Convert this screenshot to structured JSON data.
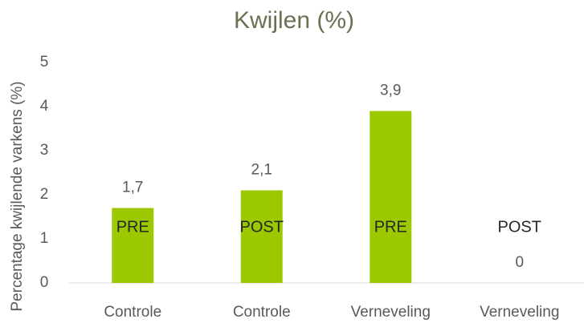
{
  "chart_data": {
    "type": "bar",
    "title": "Kwijlen (%)",
    "y_axis_label": "Percentage kwijlende varkens (%)",
    "categories": [
      "Controle",
      "Controle",
      "Verneveling",
      "Verneveling"
    ],
    "bar_labels": [
      "PRE",
      "POST",
      "PRE",
      "POST"
    ],
    "values": [
      1.7,
      2.1,
      3.9,
      0
    ],
    "value_labels": [
      "1,7",
      "2,1",
      "3,9",
      "0"
    ],
    "color": "#9cc800",
    "ylim": [
      0,
      5
    ],
    "yticks": [
      0,
      1,
      2,
      3,
      4,
      5
    ],
    "grid": false
  }
}
